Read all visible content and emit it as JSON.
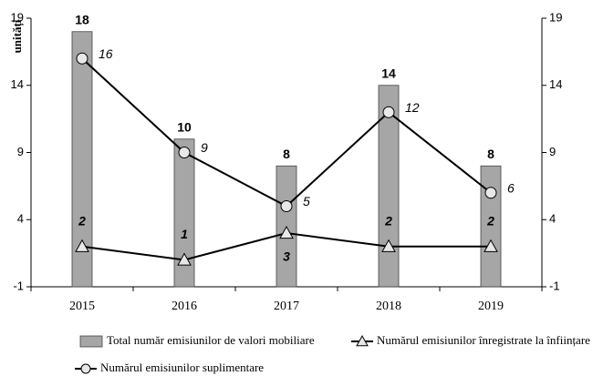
{
  "chart_data": {
    "type": "combo",
    "y_label": "unități",
    "categories": [
      "2015",
      "2016",
      "2017",
      "2018",
      "2019"
    ],
    "series": [
      {
        "name": "Total număr emisiunilor de valori mobiliare",
        "type": "bar",
        "color": "#a6a6a6",
        "values": [
          18,
          10,
          8,
          14,
          8
        ]
      },
      {
        "name": "Numărul emisiunilor înregistrate la înființare",
        "type": "line",
        "marker": "triangle",
        "color": "#000000",
        "values": [
          2,
          1,
          3,
          2,
          2
        ]
      },
      {
        "name": "Numărul emisiunilor suplimentare",
        "type": "line",
        "marker": "circle",
        "color": "#000000",
        "values": [
          16,
          9,
          5,
          12,
          6
        ]
      }
    ],
    "ylim": [
      -1,
      19
    ],
    "yticks": [
      -1,
      4,
      9,
      14,
      19
    ],
    "y2lim": [
      -1,
      19
    ],
    "y2ticks": [
      -1,
      4,
      9,
      14,
      19
    ]
  }
}
